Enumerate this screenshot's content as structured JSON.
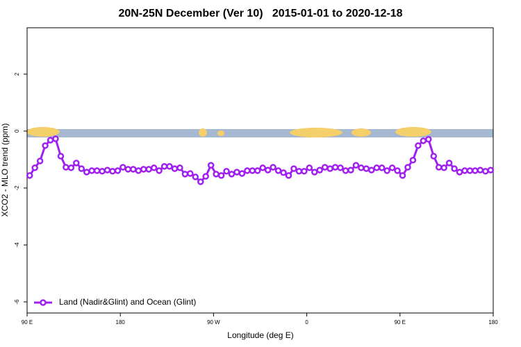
{
  "chart_data": {
    "type": "line",
    "title": "20N-25N December (Ver 10)   2015-01-01 to 2020-12-18",
    "x_label": "Longitude (deg E)",
    "y_label": "XCO2 - MLO trend (ppm)",
    "xlim": [
      90,
      540
    ],
    "xticks": [
      {
        "value": 90,
        "label": "90 E"
      },
      180,
      {
        "value": 270,
        "label": "90 W"
      },
      {
        "value": 360,
        "label": "0"
      },
      {
        "value": 450,
        "label": "90 E"
      },
      {
        "value": 540,
        "label": "180"
      }
    ],
    "ylim": [
      -6.39,
      3.63
    ],
    "yticks": [
      -6,
      -4,
      -2,
      0,
      2
    ],
    "legend": "bottomleft",
    "series": [
      {
        "name": "Land (Nadir&Glint) and Ocean (Glint)",
        "color": "#a020f0",
        "x": [
          92.5,
          97.5,
          102.5,
          107.5,
          112.5,
          117.5,
          122.5,
          127.5,
          132.5,
          137.5,
          142.5,
          147.5,
          152.5,
          157.5,
          162.5,
          167.5,
          172.5,
          177.5,
          182.5,
          187.5,
          192.5,
          197.5,
          202.5,
          207.5,
          212.5,
          217.5,
          222.5,
          227.5,
          232.5,
          237.5,
          242.5,
          247.5,
          252.5,
          257.5,
          262.5,
          267.5,
          272.5,
          277.5,
          282.5,
          287.5,
          292.5,
          297.5,
          302.5,
          307.5,
          312.5,
          317.5,
          322.5,
          327.5,
          332.5,
          337.5,
          342.5,
          347.5,
          352.5,
          357.5,
          362.5,
          367.5,
          372.5,
          377.5,
          382.5,
          387.5,
          392.5,
          397.5,
          402.5,
          407.5,
          412.5,
          417.5,
          422.5,
          427.5,
          432.5,
          437.5,
          442.5,
          447.5,
          452.5,
          457.5,
          462.5,
          467.5,
          472.5,
          477.5,
          482.5,
          487.5,
          492.5,
          497.5,
          502.5,
          507.5,
          512.5,
          517.5,
          522.5,
          527.5,
          532.5,
          537.5
        ],
        "values": [
          -1.56,
          -1.29,
          -1.05,
          -0.51,
          -0.32,
          -0.27,
          -0.88,
          -1.27,
          -1.29,
          -1.12,
          -1.32,
          -1.44,
          -1.39,
          -1.39,
          -1.41,
          -1.37,
          -1.41,
          -1.39,
          -1.27,
          -1.34,
          -1.34,
          -1.39,
          -1.34,
          -1.34,
          -1.29,
          -1.39,
          -1.24,
          -1.24,
          -1.32,
          -1.29,
          -1.51,
          -1.49,
          -1.61,
          -1.78,
          -1.59,
          -1.2,
          -1.51,
          -1.56,
          -1.41,
          -1.51,
          -1.44,
          -1.49,
          -1.39,
          -1.39,
          -1.39,
          -1.29,
          -1.37,
          -1.27,
          -1.39,
          -1.46,
          -1.56,
          -1.32,
          -1.41,
          -1.41,
          -1.29,
          -1.44,
          -1.37,
          -1.27,
          -1.32,
          -1.27,
          -1.29,
          -1.39,
          -1.37,
          -1.2,
          -1.29,
          -1.32,
          -1.37,
          -1.29,
          -1.29,
          -1.39,
          -1.29,
          -1.39,
          -1.56,
          -1.27,
          -1.02,
          -0.51,
          -0.34,
          -0.29,
          -0.88,
          -1.27,
          -1.29,
          -1.12,
          -1.32,
          -1.44,
          -1.39,
          -1.39,
          -1.39,
          -1.37,
          -1.41,
          -1.37
        ]
      }
    ]
  }
}
